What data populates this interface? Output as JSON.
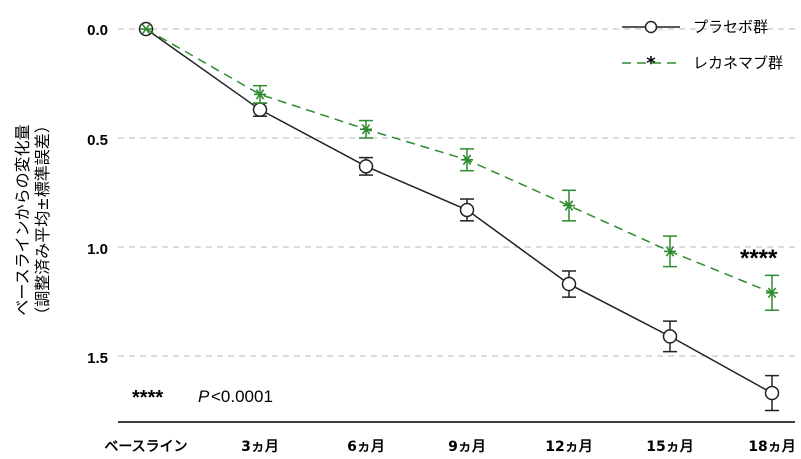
{
  "chart_data": {
    "type": "line",
    "categories": [
      "ベースライン",
      "3ヵ月",
      "6ヵ月",
      "9ヵ月",
      "12ヵ月",
      "15ヵ月",
      "18ヵ月"
    ],
    "ylabel_line1": "ベースラインからの変化量",
    "ylabel_line2": "（調整済み平均±標準誤差）",
    "yticks": [
      "0.0",
      "0.5",
      "1.0",
      "1.5"
    ],
    "ylim": [
      0,
      1.75
    ],
    "y_inverted": true,
    "grid": "horizontal dashed",
    "legend_position": "top-right",
    "series": [
      {
        "name": "プラセボ群",
        "color": "#222222",
        "marker": "circle",
        "line": "solid",
        "values": [
          0.0,
          0.37,
          0.63,
          0.83,
          1.17,
          1.41,
          1.67
        ],
        "errors": [
          0.0,
          0.03,
          0.04,
          0.05,
          0.06,
          0.07,
          0.08
        ]
      },
      {
        "name": "レカネマブ群",
        "color": "#2e8b2e",
        "marker": "asterisk",
        "line": "dashed",
        "values": [
          0.0,
          0.3,
          0.46,
          0.6,
          0.81,
          1.02,
          1.21
        ],
        "errors": [
          0.0,
          0.04,
          0.04,
          0.05,
          0.07,
          0.07,
          0.08
        ]
      }
    ],
    "annotations": {
      "significance_marker": "****",
      "legend_stars": "****",
      "p_label": "P",
      "p_value": "<0.0001"
    }
  }
}
